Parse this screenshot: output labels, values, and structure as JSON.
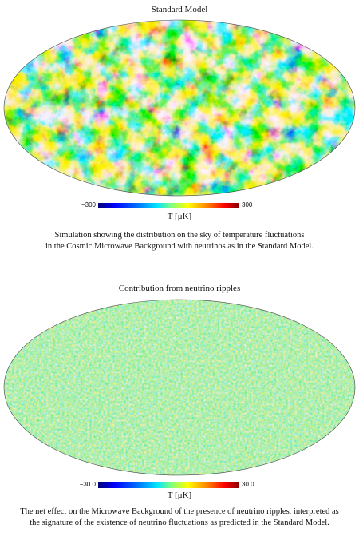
{
  "panels": [
    {
      "title": "Standard Model",
      "scale_min": "−300",
      "scale_max": "300",
      "unit": "T [μK]",
      "caption_line1": "Simulation showing the distribution on the sky of temperature fluctuations",
      "caption_line2": "in the Cosmic Microwave Background with neutrinos as in the Standard Model.",
      "fluctuation_scale": "large"
    },
    {
      "title": "Contribution from neutrino ripples",
      "scale_min": "−30.0",
      "scale_max": "30.0",
      "unit": "T [μK]",
      "caption_line1": "The net effect on the Microwave Background of the presence of neutrino ripples, interpreted as",
      "caption_line2": "the signature of the existence of neutrino fluctuations as predicted in the Standard Model.",
      "fluctuation_scale": "fine"
    }
  ],
  "colors": {
    "background": "#ffffff",
    "map_base": "#5fd38a",
    "cold": "#0000c8",
    "cool": "#00b4ff",
    "warm": "#ffd200",
    "hot": "#e00000"
  }
}
